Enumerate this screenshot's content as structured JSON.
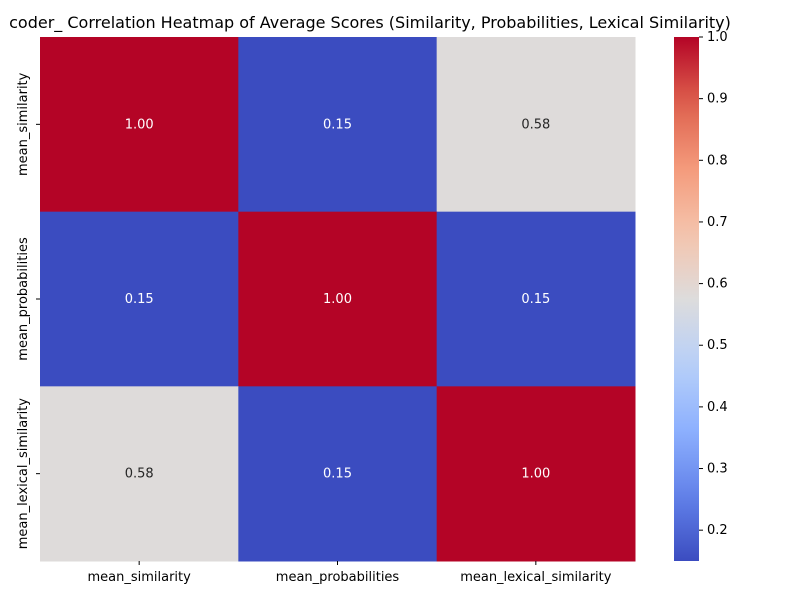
{
  "chart_data": {
    "type": "heatmap",
    "title": "coder_ Correlation Heatmap of Average Scores (Similarity, Probabilities, Lexical Similarity)",
    "xlabel": "",
    "ylabel": "",
    "row_labels": [
      "mean_similarity",
      "mean_probabilities",
      "mean_lexical_similarity"
    ],
    "column_labels": [
      "mean_similarity",
      "mean_probabilities",
      "mean_lexical_similarity"
    ],
    "values": [
      [
        1.0,
        0.15,
        0.58
      ],
      [
        0.15,
        1.0,
        0.15
      ],
      [
        0.58,
        0.15,
        1.0
      ]
    ],
    "cell_labels": [
      [
        "1.00",
        "0.15",
        "0.58"
      ],
      [
        "0.15",
        "1.00",
        "0.15"
      ],
      [
        "0.58",
        "0.15",
        "1.00"
      ]
    ],
    "colormap": "coolwarm",
    "colorbar": {
      "min": 0.15,
      "max": 1.0,
      "ticks": [
        0.2,
        0.3,
        0.4,
        0.5,
        0.6,
        0.7,
        0.8,
        0.9,
        1.0
      ],
      "tick_labels": [
        "0.2",
        "0.3",
        "0.4",
        "0.5",
        "0.6",
        "0.7",
        "0.8",
        "0.9",
        "1.0"
      ]
    },
    "colors": {
      "low": "#3b4cc0",
      "mid": "#dddcdc",
      "high": "#b40426"
    }
  }
}
